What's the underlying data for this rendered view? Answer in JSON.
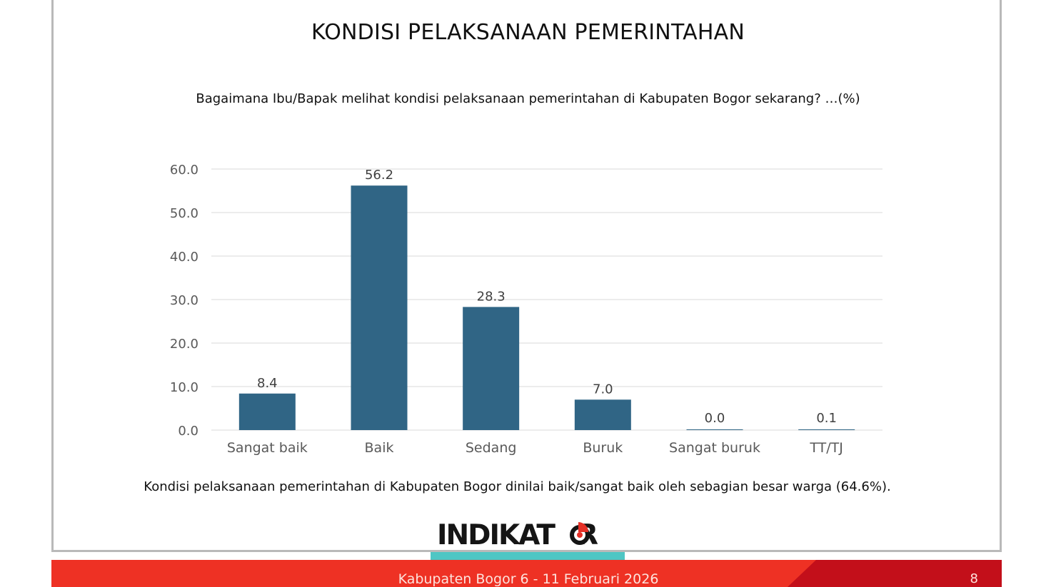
{
  "slide": {
    "title": "KONDISI PELAKSANAAN PEMERINTAHAN",
    "question": "Bagaimana Ibu/Bapak melihat kondisi pelaksanaan pemerintahan di Kabupaten Bogor sekarang? …(%)",
    "note": "Kondisi pelaksanaan pemerintahan di Kabupaten Bogor dinilai baik/sangat baik oleh sebagian besar warga (64.6%).",
    "logo_text": "INDIKAT",
    "logo_text_end": "R",
    "footer_text": "Kabupaten Bogor 6 - 11 Februari 2026",
    "page_number": "8"
  },
  "colors": {
    "bar": "#306585",
    "grid": "#d9d9d9",
    "footer_red": "#ee3124",
    "logo_accent": "#4fc6c4"
  },
  "chart_data": {
    "type": "bar",
    "categories": [
      "Sangat baik",
      "Baik",
      "Sedang",
      "Buruk",
      "Sangat buruk",
      "TT/TJ"
    ],
    "values": [
      8.4,
      56.2,
      28.3,
      7.0,
      0.0,
      0.1
    ],
    "value_labels": [
      "8.4",
      "56.2",
      "28.3",
      "7.0",
      "0.0",
      "0.1"
    ],
    "yticks": [
      "0.0",
      "10.0",
      "20.0",
      "30.0",
      "40.0",
      "50.0",
      "60.0"
    ],
    "ylim": [
      0,
      60
    ],
    "grid": true,
    "legend": "none"
  }
}
